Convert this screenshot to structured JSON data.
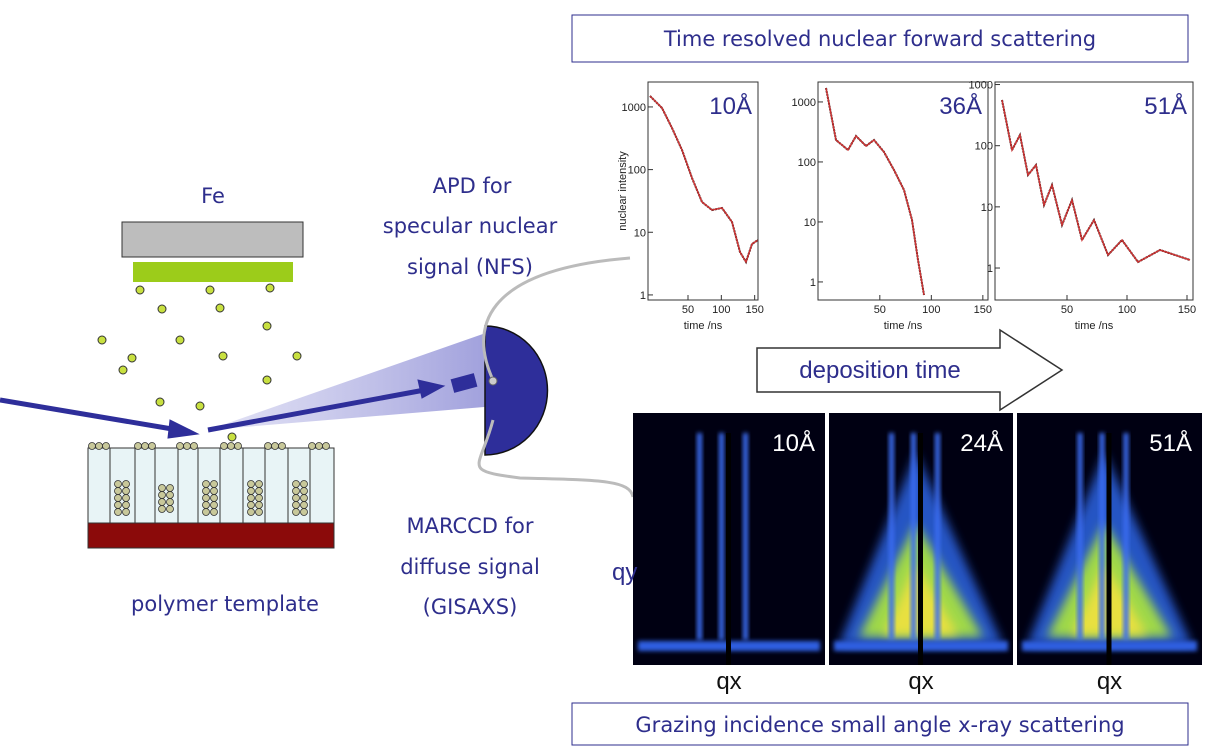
{
  "top_box": "Time resolved nuclear forward scattering",
  "nfs_panels": [
    {
      "label": "10Å",
      "y_label": "nuclear intensity",
      "x_label": "time /ns",
      "log_y": true,
      "ylim": [
        0.83,
        2500
      ],
      "yticks": [
        1,
        10,
        100,
        1000
      ],
      "xlim": [
        -10,
        155
      ],
      "xticks": [
        50,
        100,
        150
      ]
    },
    {
      "label": "36Å",
      "x_label": "time /ns",
      "log_y": true,
      "ylim": [
        0.5,
        2150
      ],
      "yticks": [
        1,
        10,
        100,
        1000
      ],
      "xlim": [
        -10,
        155
      ],
      "xticks": [
        50,
        100,
        150
      ]
    },
    {
      "label": "51Å",
      "x_label": "time /ns",
      "log_y": true,
      "ylim": [
        0.3,
        1100
      ],
      "yticks": [
        1,
        10,
        100,
        1000
      ],
      "xlim": [
        -10,
        155
      ],
      "xticks": [
        50,
        100,
        150
      ]
    }
  ],
  "deposition_arrow": "deposition time",
  "gisaxs_panels": [
    {
      "label": "10Å",
      "x_label": "qx"
    },
    {
      "label": "24Å",
      "x_label": "qx"
    },
    {
      "label": "51Å",
      "x_label": "qx"
    }
  ],
  "qy_label": "qy",
  "bottom_box": "Grazing incidence small angle x-ray scattering",
  "source_label": "Fe",
  "apd_label": [
    "APD for",
    "specular nuclear",
    "signal (NFS)"
  ],
  "marccd_label": [
    "MARCCD for",
    "diffuse signal",
    "(GISAXS)"
  ],
  "template_label": "polymer template"
}
